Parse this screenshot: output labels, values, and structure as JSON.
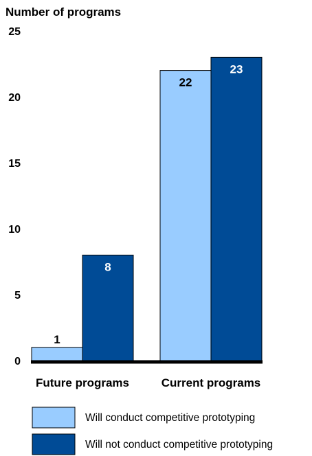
{
  "chart_data": {
    "type": "bar",
    "ylabel": "Number of programs",
    "ylim": [
      0,
      25
    ],
    "yticks": [
      0,
      5,
      10,
      15,
      20,
      25
    ],
    "categories": [
      "Future programs",
      "Current programs"
    ],
    "series": [
      {
        "name": "Will conduct competitive prototyping",
        "values": [
          1,
          22
        ],
        "color": "#99ccff"
      },
      {
        "name": "Will not conduct competitive prototyping",
        "values": [
          8,
          23
        ],
        "color": "#004b96"
      }
    ],
    "data_labels": [
      [
        "1",
        "8"
      ],
      [
        "22",
        "23"
      ]
    ],
    "grid": false,
    "legend_placement": "bottom"
  }
}
